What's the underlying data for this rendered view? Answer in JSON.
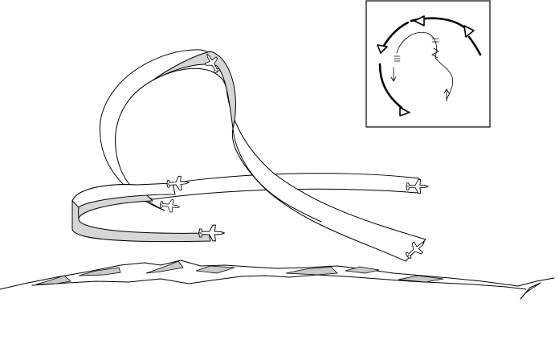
{
  "figure": {
    "subject": "aircraft-flight-path-ribbon-maneuver",
    "aircraft_count": 6,
    "has_inset_plan_view": true,
    "inset_direction_arrows": 4,
    "colors": {
      "ink": "#000000",
      "background": "#ffffff",
      "ribbon_shade": "#d6d6d6",
      "terrain_shade": "#c9c9c9"
    }
  }
}
